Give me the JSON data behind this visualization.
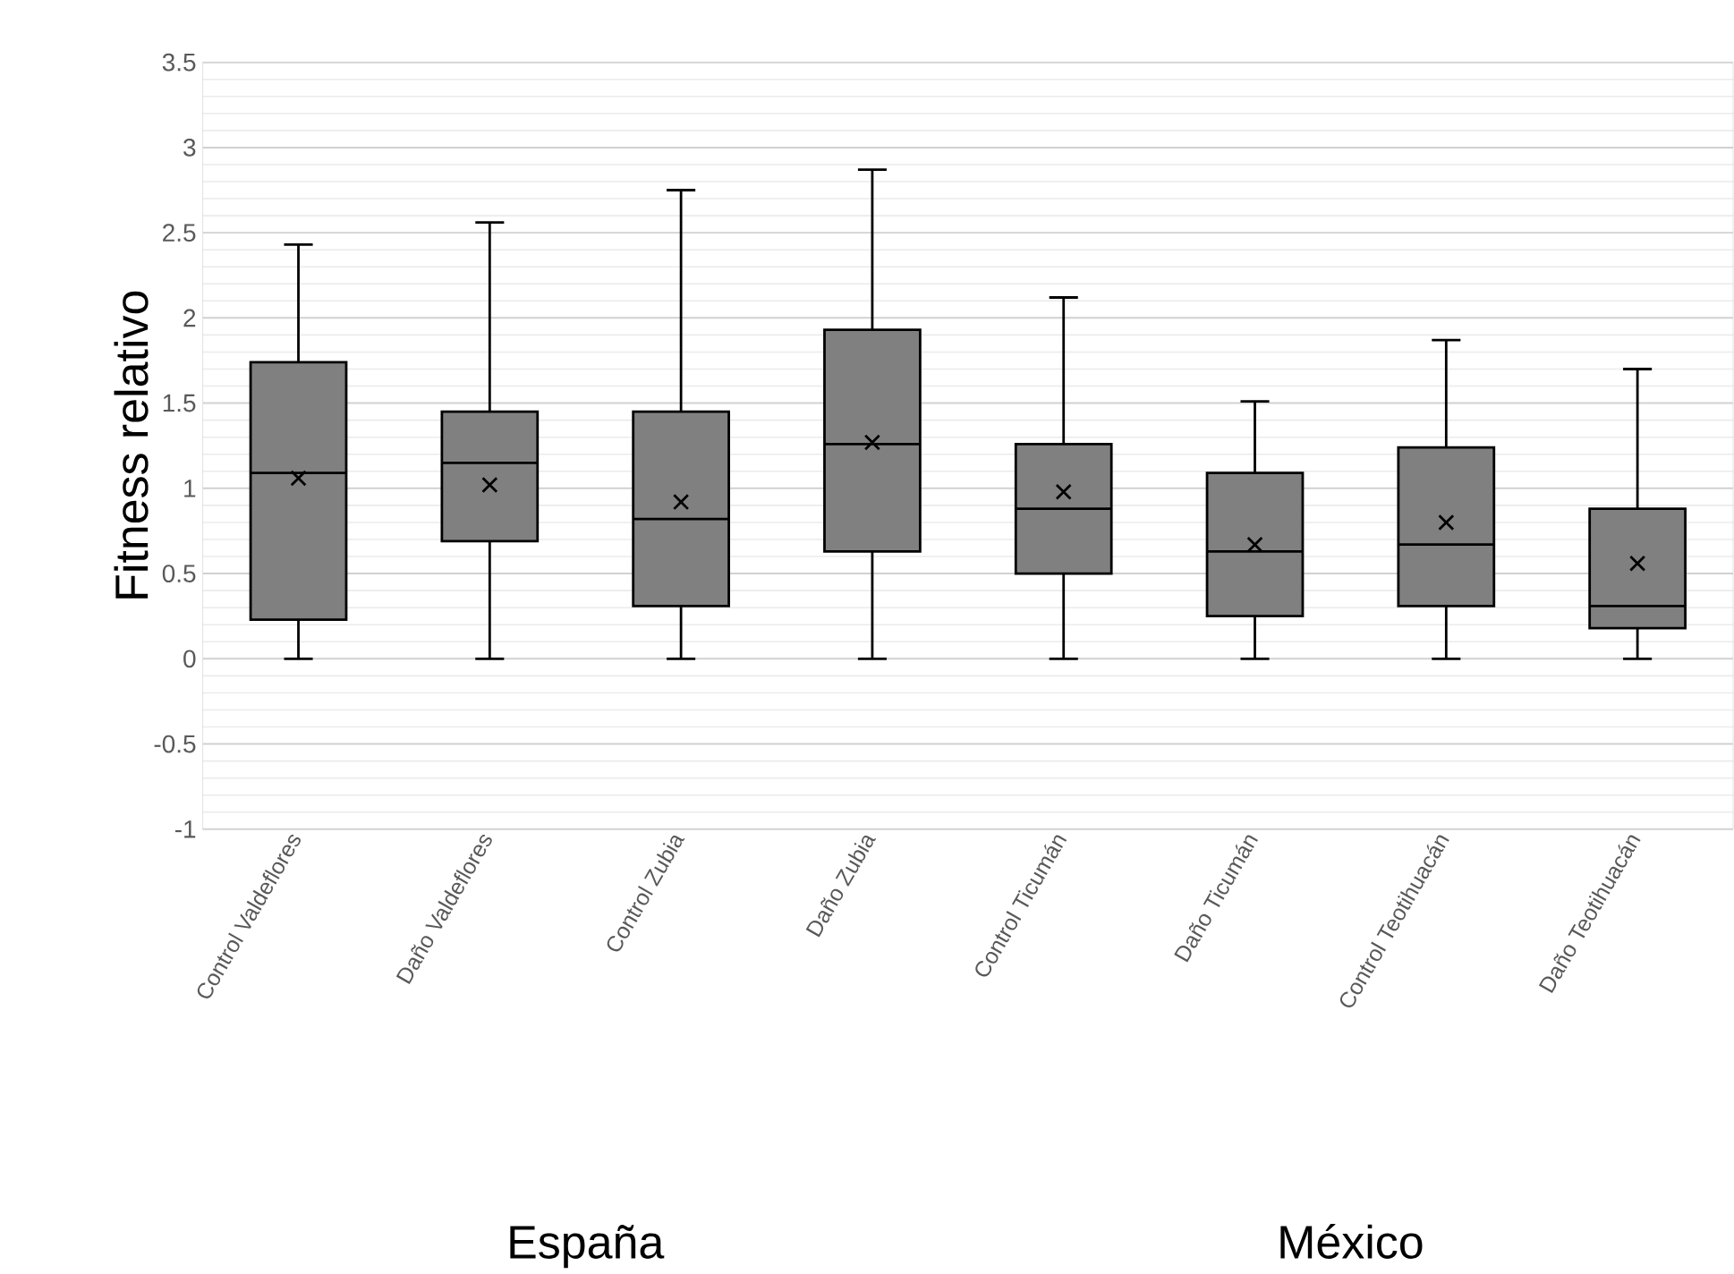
{
  "chart_data": {
    "type": "box",
    "ylabel": "Fitness relativo",
    "categories": [
      "Control Valdeflores",
      "Daño Valdeflores",
      "Control Zubia",
      "Daño Zubia",
      "Control Ticumán",
      "Daño Ticumán",
      "Control Teotihuacán",
      "Daño Teotihuacán"
    ],
    "series": [
      {
        "color": "#808080",
        "boxes": [
          {
            "low": 0,
            "q1": 0.23,
            "median": 1.09,
            "q3": 1.74,
            "high": 2.43,
            "mean": 1.06
          },
          {
            "low": 0,
            "q1": 0.69,
            "median": 1.15,
            "q3": 1.45,
            "high": 2.56,
            "mean": 1.02
          },
          {
            "low": 0,
            "q1": 0.31,
            "median": 0.82,
            "q3": 1.45,
            "high": 2.75,
            "mean": 0.92
          },
          {
            "low": 0,
            "q1": 0.63,
            "median": 1.26,
            "q3": 1.93,
            "high": 2.87,
            "mean": 1.27
          },
          {
            "low": 0,
            "q1": 0.5,
            "median": 0.88,
            "q3": 1.26,
            "high": 2.12,
            "mean": 0.98
          },
          {
            "low": 0,
            "q1": 0.25,
            "median": 0.63,
            "q3": 1.09,
            "high": 1.51,
            "mean": 0.67
          },
          {
            "low": 0,
            "q1": 0.31,
            "median": 0.67,
            "q3": 1.24,
            "high": 1.87,
            "mean": 0.8
          },
          {
            "low": 0,
            "q1": 0.18,
            "median": 0.31,
            "q3": 0.88,
            "high": 1.7,
            "mean": 0.56
          }
        ]
      }
    ],
    "ylim": [
      -1,
      3.5
    ],
    "yticks": [
      -1,
      -0.5,
      0,
      0.5,
      1,
      1.5,
      2,
      2.5,
      3,
      3.5
    ],
    "grid": "y",
    "marker": "cross",
    "annotations": [
      "España",
      "México"
    ]
  }
}
